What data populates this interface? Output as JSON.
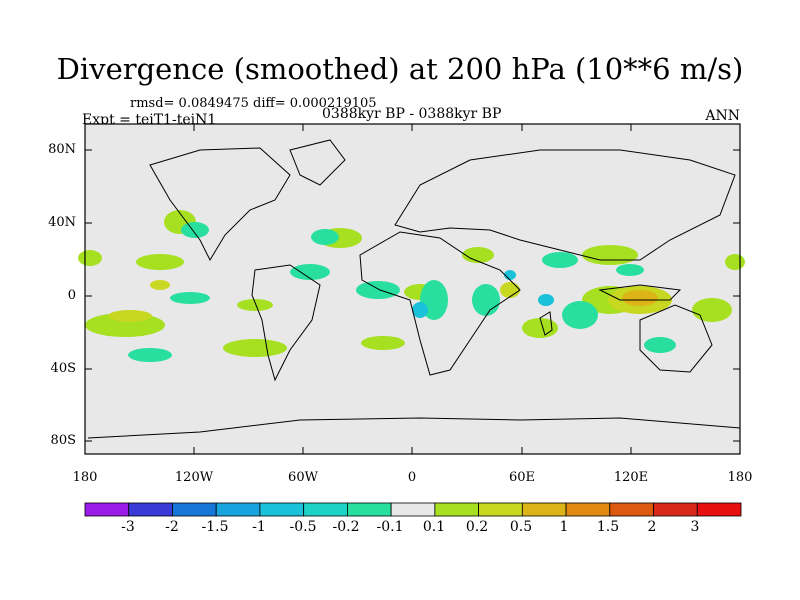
{
  "title": "Divergence (smoothed) at 200 hPa (10**6 m/s)",
  "stats": "rmsd= 0.0849475 diff= 0.000219105",
  "experiment": "Expt = teiT1-teiN1",
  "period": "0388kyr BP - 0388kyr BP",
  "season": "ANN",
  "lat_labels": [
    "80N",
    "40N",
    "0",
    "40S",
    "80S"
  ],
  "lon_labels": [
    "180",
    "120W",
    "60W",
    "0",
    "60E",
    "120E",
    "180"
  ],
  "colorbar": {
    "labels": [
      "-3",
      "-2",
      "-1.5",
      "-1",
      "-0.5",
      "-0.2",
      "-0.1",
      "0.1",
      "0.2",
      "0.5",
      "1",
      "1.5",
      "2",
      "3"
    ],
    "colors": [
      "#9b1be8",
      "#3a3bd6",
      "#1677d8",
      "#17a3dd",
      "#19c2d8",
      "#1dd3c8",
      "#29dfa0",
      "#e8e8e8",
      "#a6e020",
      "#c8d820",
      "#dcb418",
      "#e08a14",
      "#dc5a10",
      "#d8281a",
      "#e80f0f"
    ]
  },
  "colors": {
    "background": "#e8e8e8",
    "land_outline": "#000000"
  }
}
